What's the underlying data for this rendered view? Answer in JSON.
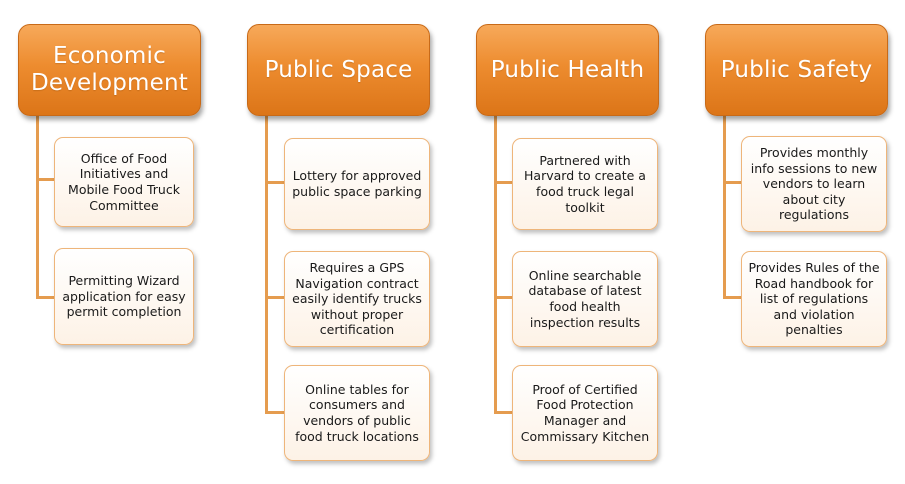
{
  "diagram": {
    "columns": [
      {
        "header": "Economic Development",
        "items": [
          "Office of Food Initiatives and Mobile Food Truck Committee",
          "Permitting Wizard application for easy permit completion"
        ]
      },
      {
        "header": "Public Space",
        "items": [
          "Lottery for approved public space parking",
          "Requires a GPS Navigation contract easily identify trucks without proper certification",
          "Online tables for consumers and vendors of public food truck locations"
        ]
      },
      {
        "header": "Public Health",
        "items": [
          "Partnered with Harvard to create a food truck legal toolkit",
          "Online searchable database of latest food health inspection results",
          "Proof of Certified Food Protection Manager and Commissary Kitchen"
        ]
      },
      {
        "header": "Public Safety",
        "items": [
          "Provides monthly info sessions to new vendors to learn about city regulations",
          "Provides Rules of the Road handbook for list of regulations and violation penalties"
        ]
      }
    ],
    "colors": {
      "header_fill": "#ed8c2f",
      "connector": "#e59c4f",
      "box_border": "#eeb57a"
    }
  }
}
